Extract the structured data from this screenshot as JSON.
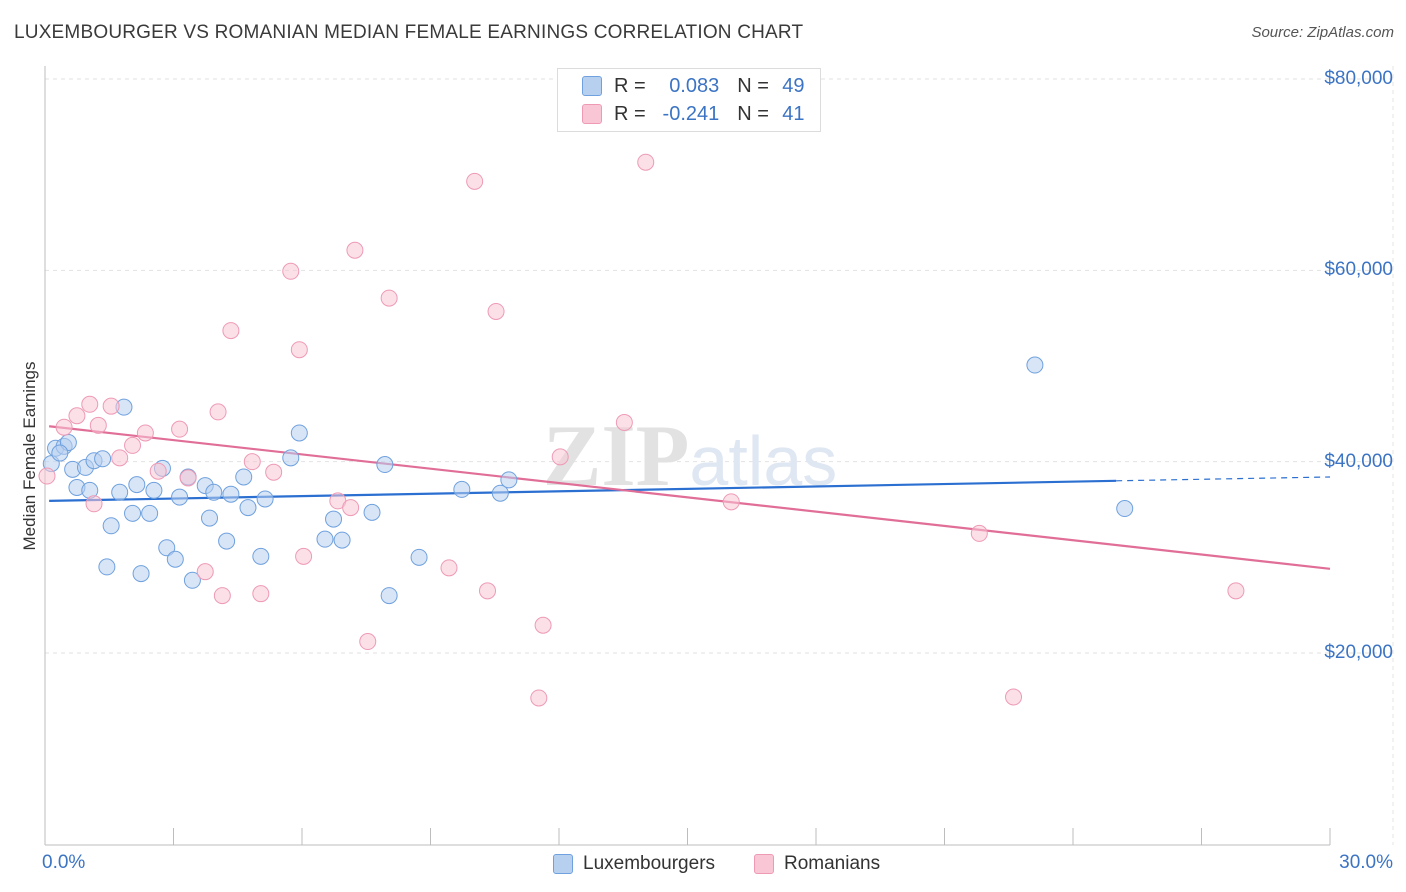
{
  "chart_data": {
    "type": "scatter",
    "title": "LUXEMBOURGER VS ROMANIAN MEDIAN FEMALE EARNINGS CORRELATION CHART",
    "source": "Source: ZipAtlas.com",
    "watermark": "ZIPatlas",
    "xlabel": "",
    "ylabel": "Median Female Earnings",
    "xlim": [
      0,
      30
    ],
    "ylim": [
      0,
      81000
    ],
    "x_tick_labels": [
      "0.0%",
      "30.0%"
    ],
    "y_ticks": [
      20000,
      40000,
      60000,
      80000
    ],
    "y_tick_labels": [
      "$20,000",
      "$40,000",
      "$60,000",
      "$80,000"
    ],
    "grid": true,
    "legend": {
      "position": "top-center",
      "entries": [
        {
          "r_label": "R =",
          "r_value": "0.083",
          "n_label": "N =",
          "n_value": "49"
        },
        {
          "r_label": "R =",
          "r_value": "-0.241",
          "n_label": "N =",
          "n_value": "41"
        }
      ]
    },
    "series": [
      {
        "name": "Luxembourgers",
        "color": "#6fa1de",
        "fill": "#b8d0f0",
        "trend_color": "#2b6fd1",
        "trend": {
          "x0": 0.05,
          "y0": 35900,
          "x1": 25,
          "y1": 38000,
          "dash_to_x": 30,
          "dash_to_y": 38400
        },
        "points": [
          [
            0.1,
            39800
          ],
          [
            0.2,
            41400
          ],
          [
            0.4,
            41600
          ],
          [
            0.5,
            42000
          ],
          [
            0.6,
            39200
          ],
          [
            0.7,
            37300
          ],
          [
            0.9,
            39400
          ],
          [
            1.0,
            37000
          ],
          [
            1.1,
            40100
          ],
          [
            1.3,
            40300
          ],
          [
            1.4,
            29000
          ],
          [
            1.5,
            33300
          ],
          [
            1.7,
            36800
          ],
          [
            1.8,
            45700
          ],
          [
            2.0,
            34600
          ],
          [
            2.1,
            37600
          ],
          [
            2.2,
            28300
          ],
          [
            2.4,
            34600
          ],
          [
            2.5,
            37000
          ],
          [
            2.7,
            39300
          ],
          [
            2.8,
            31000
          ],
          [
            3.0,
            29800
          ],
          [
            3.1,
            36300
          ],
          [
            3.3,
            38400
          ],
          [
            3.4,
            27600
          ],
          [
            3.7,
            37500
          ],
          [
            3.8,
            34100
          ],
          [
            3.9,
            36800
          ],
          [
            4.2,
            31700
          ],
          [
            4.3,
            36600
          ],
          [
            4.6,
            38400
          ],
          [
            4.7,
            35200
          ],
          [
            5.0,
            30100
          ],
          [
            5.1,
            36100
          ],
          [
            5.7,
            40400
          ],
          [
            5.9,
            43000
          ],
          [
            6.5,
            31900
          ],
          [
            6.7,
            34000
          ],
          [
            6.9,
            31800
          ],
          [
            7.6,
            34700
          ],
          [
            7.9,
            39700
          ],
          [
            8.0,
            26000
          ],
          [
            8.7,
            30000
          ],
          [
            9.7,
            37100
          ],
          [
            10.6,
            36700
          ],
          [
            10.8,
            38100
          ],
          [
            23.1,
            50100
          ],
          [
            25.2,
            35100
          ],
          [
            0.3,
            40900
          ]
        ]
      },
      {
        "name": "Romanians",
        "color": "#ee9ab5",
        "fill": "#f9c6d6",
        "trend_color": "#e06e97",
        "trend": {
          "x0": 0.05,
          "y0": 43700,
          "x1": 30,
          "y1": 28800
        },
        "points": [
          [
            0.0,
            38500
          ],
          [
            0.4,
            43600
          ],
          [
            0.7,
            44800
          ],
          [
            1.0,
            46000
          ],
          [
            1.2,
            43800
          ],
          [
            1.5,
            45800
          ],
          [
            1.7,
            40400
          ],
          [
            2.0,
            41700
          ],
          [
            2.3,
            43000
          ],
          [
            2.6,
            39000
          ],
          [
            3.1,
            43400
          ],
          [
            3.3,
            38300
          ],
          [
            3.7,
            28500
          ],
          [
            4.0,
            45200
          ],
          [
            4.1,
            26000
          ],
          [
            4.3,
            53700
          ],
          [
            4.8,
            40000
          ],
          [
            5.0,
            26200
          ],
          [
            5.3,
            38900
          ],
          [
            5.7,
            59900
          ],
          [
            5.9,
            51700
          ],
          [
            6.0,
            30100
          ],
          [
            6.8,
            35900
          ],
          [
            7.1,
            35200
          ],
          [
            7.2,
            62100
          ],
          [
            7.5,
            21200
          ],
          [
            8.0,
            57100
          ],
          [
            9.4,
            28900
          ],
          [
            10.0,
            69300
          ],
          [
            10.3,
            26500
          ],
          [
            10.5,
            55700
          ],
          [
            11.5,
            15300
          ],
          [
            11.6,
            22900
          ],
          [
            12.0,
            40500
          ],
          [
            13.5,
            44100
          ],
          [
            14.0,
            71300
          ],
          [
            16.0,
            35800
          ],
          [
            21.8,
            32500
          ],
          [
            22.6,
            15400
          ],
          [
            27.8,
            26500
          ],
          [
            1.1,
            35600
          ]
        ]
      }
    ]
  }
}
